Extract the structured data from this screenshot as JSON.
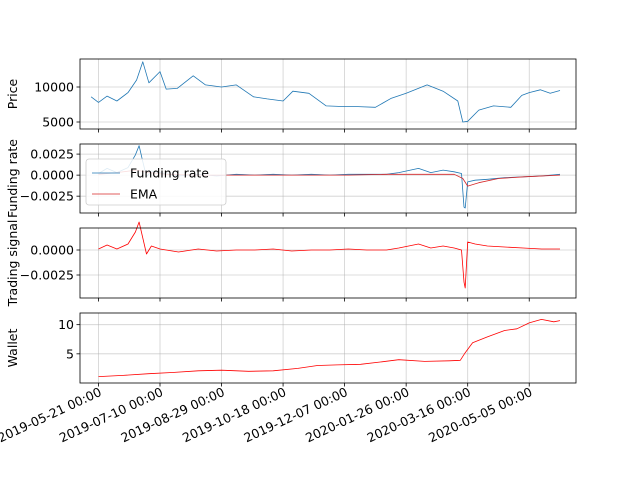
{
  "chart_data": [
    {
      "type": "line",
      "ylabel": "Price",
      "ylim": [
        4000,
        14000
      ],
      "yticks": [
        5000,
        10000
      ],
      "grid": true,
      "series": [
        {
          "name": "",
          "color": "#1f77b4",
          "x": [
            "2019-05-15",
            "2019-05-21",
            "2019-05-28",
            "2019-06-05",
            "2019-06-14",
            "2019-06-21",
            "2019-06-26",
            "2019-07-01",
            "2019-07-10",
            "2019-07-15",
            "2019-07-24",
            "2019-08-06",
            "2019-08-16",
            "2019-08-29",
            "2019-09-10",
            "2019-09-24",
            "2019-10-05",
            "2019-10-18",
            "2019-10-26",
            "2019-11-08",
            "2019-11-22",
            "2019-12-07",
            "2019-12-18",
            "2020-01-01",
            "2020-01-14",
            "2020-01-26",
            "2020-02-12",
            "2020-02-25",
            "2020-03-08",
            "2020-03-12",
            "2020-03-16",
            "2020-03-25",
            "2020-04-06",
            "2020-04-20",
            "2020-04-29",
            "2020-05-05",
            "2020-05-14",
            "2020-05-22",
            "2020-05-30"
          ],
          "values": [
            8600,
            7800,
            8700,
            8000,
            9200,
            11000,
            13600,
            10600,
            12200,
            9700,
            9800,
            11600,
            10300,
            10000,
            10300,
            8600,
            8300,
            8000,
            9400,
            9100,
            7300,
            7200,
            7200,
            7100,
            8400,
            9100,
            10300,
            9400,
            8000,
            5000,
            5100,
            6700,
            7300,
            7100,
            8800,
            9200,
            9600,
            9100,
            9500
          ]
        }
      ]
    },
    {
      "type": "line",
      "ylabel": "Funding rate",
      "ylim": [
        -0.0045,
        0.0037
      ],
      "yticks": [
        -0.0025,
        0.0,
        0.0025
      ],
      "ytick_labels": [
        "−0.0025",
        "0.0000",
        "0.0025"
      ],
      "grid": true,
      "legend": "top-left",
      "series": [
        {
          "name": "Funding rate",
          "color": "#1f77b4",
          "x": [
            "2019-05-21",
            "2019-05-28",
            "2019-06-05",
            "2019-06-14",
            "2019-06-20",
            "2019-06-23",
            "2019-06-26",
            "2019-06-29",
            "2019-07-03",
            "2019-07-10",
            "2019-07-25",
            "2019-08-10",
            "2019-08-25",
            "2019-09-10",
            "2019-09-25",
            "2019-10-10",
            "2019-10-25",
            "2019-11-10",
            "2019-11-25",
            "2019-12-10",
            "2019-12-25",
            "2020-01-10",
            "2020-01-20",
            "2020-02-05",
            "2020-02-15",
            "2020-02-25",
            "2020-03-05",
            "2020-03-11",
            "2020-03-13",
            "2020-03-14",
            "2020-03-16",
            "2020-03-22",
            "2020-04-01",
            "2020-04-15",
            "2020-04-30",
            "2020-05-15",
            "2020-05-30"
          ],
          "values": [
            0.0002,
            0.0008,
            0.0003,
            0.0009,
            0.0024,
            0.0035,
            0.0016,
            -0.0002,
            0.0005,
            0.0003,
            -0.0001,
            0.0001,
            -0.0001,
            0.0001,
            0.0,
            0.0001,
            0.0,
            0.0001,
            0.0,
            0.0001,
            0.0001,
            0.0001,
            0.0003,
            0.0008,
            0.0003,
            0.0006,
            0.0004,
            0.0002,
            -0.0038,
            -0.0039,
            -0.0008,
            -0.0006,
            -0.0005,
            -0.0003,
            -0.0002,
            -0.0001,
            0.0001
          ]
        },
        {
          "name": "EMA",
          "color": "#d62728",
          "x": [
            "2019-05-21",
            "2019-06-05",
            "2019-06-21",
            "2019-07-01",
            "2019-07-15",
            "2019-08-10",
            "2019-09-10",
            "2019-10-10",
            "2019-11-10",
            "2019-12-10",
            "2020-01-10",
            "2020-02-10",
            "2020-03-05",
            "2020-03-12",
            "2020-03-16",
            "2020-03-25",
            "2020-04-10",
            "2020-05-01",
            "2020-05-30"
          ],
          "values": [
            0.0001,
            0.0003,
            0.0006,
            0.0003,
            0.0001,
            0.0,
            0.0,
            0.0,
            0.0,
            0.0,
            0.0001,
            0.0001,
            0.0001,
            -0.0004,
            -0.0013,
            -0.0009,
            -0.0004,
            -0.0002,
            0.0
          ]
        }
      ]
    },
    {
      "type": "line",
      "ylabel": "Trading signal",
      "ylim": [
        -0.0048,
        0.0022
      ],
      "yticks": [
        -0.0025,
        0.0
      ],
      "ytick_labels": [
        "−0.0025",
        "0.0000"
      ],
      "grid": true,
      "series": [
        {
          "name": "",
          "color": "#ff0000",
          "x": [
            "2019-05-21",
            "2019-05-28",
            "2019-06-05",
            "2019-06-14",
            "2019-06-20",
            "2019-06-23",
            "2019-06-26",
            "2019-06-29",
            "2019-07-03",
            "2019-07-10",
            "2019-07-25",
            "2019-08-10",
            "2019-08-25",
            "2019-09-10",
            "2019-09-25",
            "2019-10-10",
            "2019-10-25",
            "2019-11-10",
            "2019-11-25",
            "2019-12-10",
            "2019-12-25",
            "2020-01-10",
            "2020-01-20",
            "2020-02-05",
            "2020-02-15",
            "2020-02-25",
            "2020-03-05",
            "2020-03-11",
            "2020-03-13",
            "2020-03-14",
            "2020-03-16",
            "2020-03-22",
            "2020-04-01",
            "2020-04-15",
            "2020-04-30",
            "2020-05-15",
            "2020-05-30"
          ],
          "values": [
            0.0001,
            0.0005,
            0.0001,
            0.0006,
            0.0018,
            0.0028,
            0.0012,
            -0.0004,
            0.0004,
            0.0001,
            -0.0002,
            0.0001,
            -0.0001,
            0.0,
            0.0,
            0.0001,
            -0.0001,
            0.0,
            0.0,
            0.0001,
            0.0,
            0.0,
            0.0002,
            0.0006,
            0.0002,
            0.0004,
            0.0002,
            0.0,
            -0.0032,
            -0.0038,
            0.0008,
            0.0006,
            0.0004,
            0.0003,
            0.0002,
            0.0001,
            0.0001
          ]
        }
      ]
    },
    {
      "type": "line",
      "ylabel": "Wallet",
      "ylim": [
        0,
        12
      ],
      "yticks": [
        5,
        10
      ],
      "grid": true,
      "xticks": [
        "2019-05-21 00:00",
        "2019-07-10 00:00",
        "2019-08-29 00:00",
        "2019-10-18 00:00",
        "2019-12-07 00:00",
        "2020-01-26 00:00",
        "2020-03-16 00:00",
        "2020-05-05 00:00"
      ],
      "series": [
        {
          "name": "",
          "color": "#ff0000",
          "x": [
            "2019-05-21",
            "2019-06-10",
            "2019-07-01",
            "2019-07-20",
            "2019-08-10",
            "2019-08-29",
            "2019-09-20",
            "2019-10-10",
            "2019-10-30",
            "2019-11-15",
            "2019-12-01",
            "2019-12-20",
            "2020-01-05",
            "2020-01-20",
            "2020-02-10",
            "2020-03-01",
            "2020-03-10",
            "2020-03-14",
            "2020-03-20",
            "2020-04-01",
            "2020-04-15",
            "2020-04-25",
            "2020-05-05",
            "2020-05-15",
            "2020-05-25",
            "2020-05-30"
          ],
          "values": [
            1.1,
            1.3,
            1.6,
            1.8,
            2.1,
            2.2,
            2.0,
            2.1,
            2.5,
            3.0,
            3.1,
            3.2,
            3.6,
            4.0,
            3.7,
            3.8,
            3.9,
            5.2,
            6.9,
            7.9,
            9.0,
            9.3,
            10.3,
            10.9,
            10.5,
            10.7
          ]
        }
      ]
    }
  ]
}
